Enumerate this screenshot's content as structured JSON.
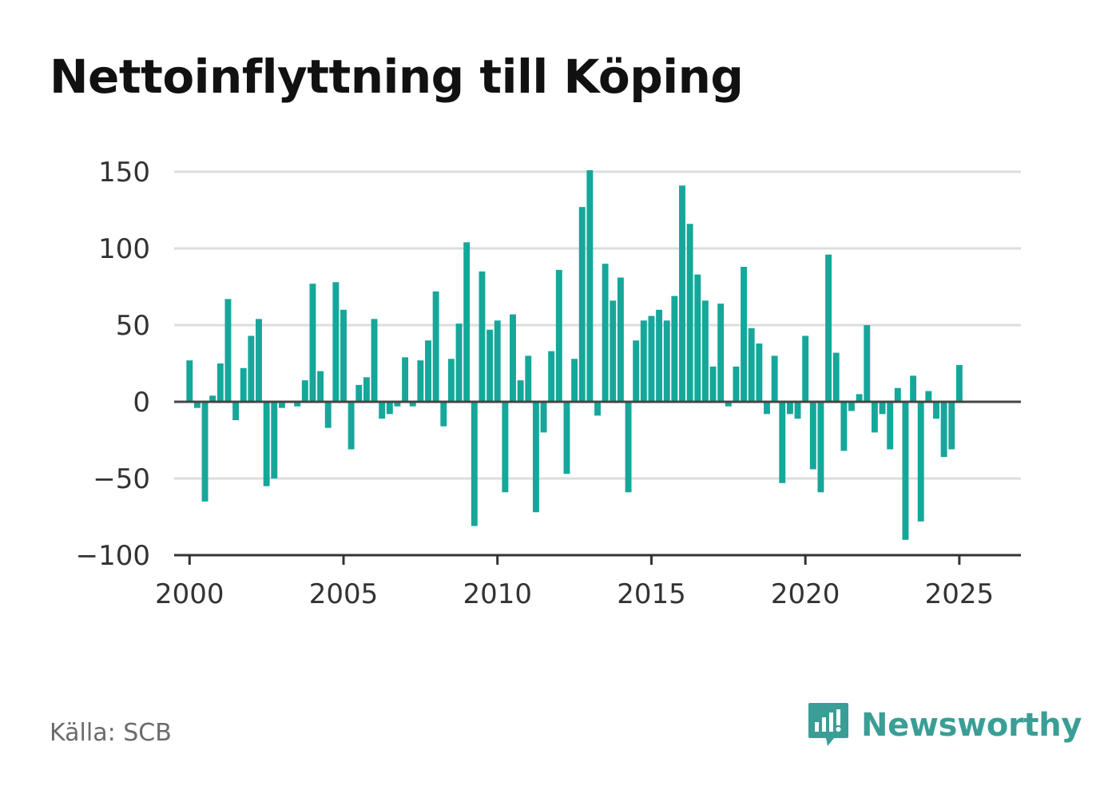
{
  "title": "Nettoinflyttning till Köping",
  "source": "Källa: SCB",
  "brand": {
    "name": "Newsworthy",
    "icon": "newsworthy-logo-icon",
    "color": "#3a9e96"
  },
  "colors": {
    "bar": "#15a79a",
    "grid": "#dddddd",
    "zero_line": "#444444",
    "axis": "#333333",
    "text": "#333333"
  },
  "chart_data": {
    "type": "bar",
    "title": "Nettoinflyttning till Köping",
    "xlabel": "",
    "ylabel": "",
    "frequency": "quarterly",
    "start": "2000 Q1",
    "xlim": [
      1999.5,
      2027.0
    ],
    "ylim": [
      -100,
      150
    ],
    "grid": true,
    "yticks": [
      -100,
      -50,
      0,
      50,
      100,
      150
    ],
    "ytick_labels": [
      "−100",
      "−50",
      "0",
      "50",
      "100",
      "150"
    ],
    "xticks": [
      2000,
      2005,
      2010,
      2015,
      2020,
      2025
    ],
    "xtick_labels": [
      "2000",
      "2005",
      "2010",
      "2015",
      "2020",
      "2025"
    ],
    "values": [
      27,
      -4,
      -65,
      4,
      25,
      67,
      -12,
      22,
      43,
      54,
      -55,
      -50,
      -4,
      0,
      -3,
      14,
      77,
      20,
      -17,
      78,
      60,
      -31,
      11,
      16,
      54,
      -11,
      -8,
      -3,
      29,
      -3,
      27,
      40,
      72,
      -16,
      28,
      51,
      104,
      -81,
      85,
      47,
      53,
      -59,
      57,
      14,
      30,
      -72,
      -20,
      33,
      86,
      -47,
      28,
      127,
      151,
      -9,
      90,
      66,
      81,
      -59,
      40,
      53,
      56,
      60,
      53,
      69,
      141,
      116,
      83,
      66,
      23,
      64,
      -3,
      23,
      88,
      48,
      38,
      -8,
      30,
      -53,
      -8,
      -11,
      43,
      -44,
      -59,
      96,
      32,
      -32,
      -6,
      5,
      50,
      -20,
      -8,
      -31,
      9,
      -90,
      17,
      -78,
      7,
      -11,
      -36,
      -31,
      24
    ]
  }
}
